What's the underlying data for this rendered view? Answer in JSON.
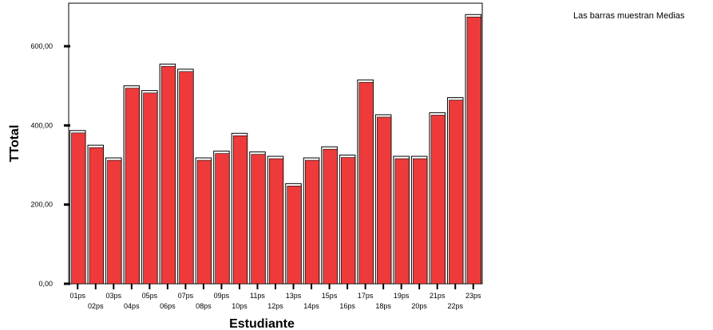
{
  "note": "Las barras muestran Medias",
  "chart_data": {
    "type": "bar",
    "xlabel": "Estudiante",
    "ylabel": "TTotal",
    "ylim": [
      0,
      700
    ],
    "yticks": [
      0,
      200,
      400,
      600
    ],
    "ytick_labels": [
      "0,00",
      "200,00",
      "400,00",
      "600,00"
    ],
    "categories": [
      "01ps",
      "02ps",
      "03ps",
      "04ps",
      "05ps",
      "06ps",
      "07ps",
      "08ps",
      "09ps",
      "10ps",
      "11ps",
      "12ps",
      "13ps",
      "14ps",
      "15ps",
      "16ps",
      "17ps",
      "18ps",
      "19ps",
      "20ps",
      "21ps",
      "22ps",
      "23ps"
    ],
    "values": [
      387,
      350,
      318,
      500,
      488,
      555,
      542,
      318,
      335,
      380,
      333,
      322,
      253,
      318,
      346,
      325,
      515,
      427,
      322,
      322,
      432,
      470,
      680
    ],
    "bar_color": "#ee3a3a"
  }
}
